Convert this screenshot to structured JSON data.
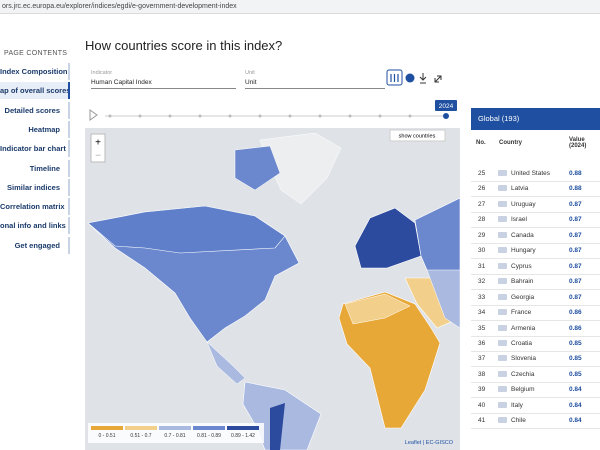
{
  "browser": {
    "url": "ors.jrc.ec.europa.eu/explorer/indices/egdi/e-government-development-index"
  },
  "sidebar": {
    "title": "PAGE CONTENTS",
    "items": [
      "Index Composition",
      "ap of overall scores",
      "Detailed scores",
      "Heatmap",
      "Indicator bar chart",
      "Timeline",
      "Similar indices",
      "Correlation matrix",
      "onal info and links",
      "Get engaged"
    ],
    "active": 1
  },
  "main": {
    "title": "How countries score in this index?",
    "indicator_label": "Indicator",
    "indicator_value": "Human Capital Index",
    "unit_label": "Unit",
    "unit_value": "Unit",
    "year": "2024",
    "map": {
      "show_button": "show countries",
      "zoom_in": "+",
      "zoom_out": "−",
      "legend": [
        {
          "label": "0 - 0.51",
          "color": "#e8a838"
        },
        {
          "label": "0.51 - 0.7",
          "color": "#f2cf8a"
        },
        {
          "label": "0.7 - 0.81",
          "color": "#a9b9e0"
        },
        {
          "label": "0.81 - 0.89",
          "color": "#6b88cf"
        },
        {
          "label": "0.89 - 1.42",
          "color": "#2c4a9e"
        }
      ],
      "attribution": "Leaflet | EC-GISCO"
    }
  },
  "table": {
    "title": "Global (193)",
    "headers": [
      "No.",
      "Country",
      "Value (2024)"
    ],
    "rows": [
      [
        "25",
        "United States",
        "0.88"
      ],
      [
        "26",
        "Latvia",
        "0.88"
      ],
      [
        "27",
        "Uruguay",
        "0.87"
      ],
      [
        "28",
        "Israel",
        "0.87"
      ],
      [
        "29",
        "Canada",
        "0.87"
      ],
      [
        "30",
        "Hungary",
        "0.87"
      ],
      [
        "31",
        "Cyprus",
        "0.87"
      ],
      [
        "32",
        "Bahrain",
        "0.87"
      ],
      [
        "33",
        "Georgia",
        "0.87"
      ],
      [
        "34",
        "France",
        "0.86"
      ],
      [
        "35",
        "Armenia",
        "0.86"
      ],
      [
        "36",
        "Croatia",
        "0.85"
      ],
      [
        "37",
        "Slovenia",
        "0.85"
      ],
      [
        "38",
        "Czechia",
        "0.85"
      ],
      [
        "39",
        "Belgium",
        "0.84"
      ],
      [
        "40",
        "Italy",
        "0.84"
      ],
      [
        "41",
        "Chile",
        "0.84"
      ]
    ]
  }
}
